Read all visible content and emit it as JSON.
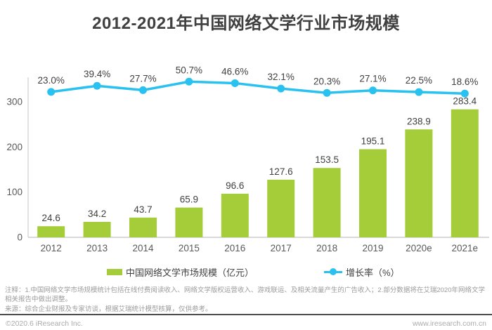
{
  "title": "2012-2021年中国网络文学行业市场规模",
  "chart_data": {
    "type": "bar+line",
    "title": "2012-2021年中国网络文学行业市场规模",
    "categories": [
      "2012",
      "2013",
      "2014",
      "2015",
      "2016",
      "2017",
      "2018",
      "2019",
      "2020e",
      "2021e"
    ],
    "series": [
      {
        "name": "中国网络文学市场规模（亿元）",
        "type": "bar",
        "values": [
          24.6,
          34.2,
          43.7,
          65.9,
          96.6,
          127.6,
          153.5,
          195.1,
          238.9,
          283.4
        ],
        "unit": "亿元",
        "color": "#a5cd3a"
      },
      {
        "name": "增长率（%）",
        "type": "line",
        "values": [
          23.0,
          39.4,
          27.7,
          50.7,
          46.6,
          32.1,
          20.3,
          27.1,
          22.5,
          18.6
        ],
        "unit": "%",
        "color": "#29c1f0"
      }
    ],
    "y_axis": {
      "ticks": [
        0,
        100,
        200,
        300
      ],
      "range": [
        0,
        300
      ]
    },
    "grid": false,
    "legend_position": "bottom",
    "data_labels": true
  },
  "legend": [
    {
      "label": "中国网络文学市场规模（亿元）",
      "color": "#a5cd3a",
      "marker": "rect"
    },
    {
      "label": "增长率（%）",
      "color": "#29c1f0",
      "marker": "line-dot"
    }
  ],
  "notes": {
    "annotation": "注释：1.中国网络文学市场规模统计包括在线付费阅读收入、网络文学版权运营收入、游戏联运、及相关流量产生的广告收入；2.部分数据将在艾瑞2020年网络文学相关报告中做出调整。",
    "source": "来源：综合企业财报及专家访谈，根据艾瑞统计模型核算，仅供参考。"
  },
  "footer": {
    "left": "©2020.6 iResearch Inc.",
    "right": "www.iresearch.com.cn"
  },
  "colors": {
    "bar": "#a5cd3a",
    "line": "#29c1f0",
    "label": "#404040",
    "axis": "#d9d9d9",
    "tick": "#595959",
    "note": "#9b9b9b",
    "footer": "#ababab",
    "divider": "#4d4d4d",
    "title": "#404040"
  }
}
